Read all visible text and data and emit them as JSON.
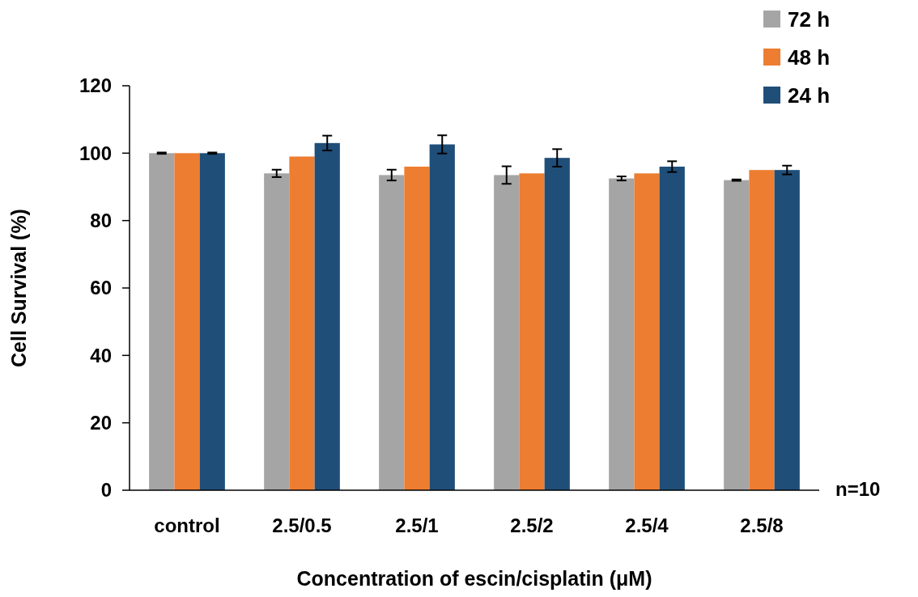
{
  "chart_data": {
    "type": "bar",
    "xlabel": "Concentration of escin/cisplatin (μM)",
    "ylabel": "Cell Survival (%)",
    "categories": [
      "control",
      "2.5/0.5",
      "2.5/1",
      "2.5/2",
      "2.5/4",
      "2.5/8"
    ],
    "series": [
      {
        "name": "72 h",
        "color": "#a5a5a5",
        "values": [
          100,
          94.0,
          93.5,
          93.5,
          92.5,
          92.0
        ],
        "errors": [
          0.2,
          1.1,
          1.6,
          2.6,
          0.6,
          0.2
        ]
      },
      {
        "name": "48 h",
        "color": "#ed7d31",
        "values": [
          100,
          99.0,
          96.0,
          94.0,
          94.0,
          95.0
        ]
      },
      {
        "name": "24 h",
        "color": "#1f4e79",
        "values": [
          100,
          103.0,
          102.6,
          98.6,
          96.0,
          95.0
        ],
        "errors": [
          0.2,
          2.2,
          2.7,
          2.6,
          1.6,
          1.3
        ]
      }
    ],
    "ylim": [
      0,
      120
    ],
    "yticks": [
      0,
      20,
      40,
      60,
      80,
      100,
      120
    ],
    "grid": false,
    "legend": "top right",
    "annotations": [
      "n=10"
    ]
  }
}
